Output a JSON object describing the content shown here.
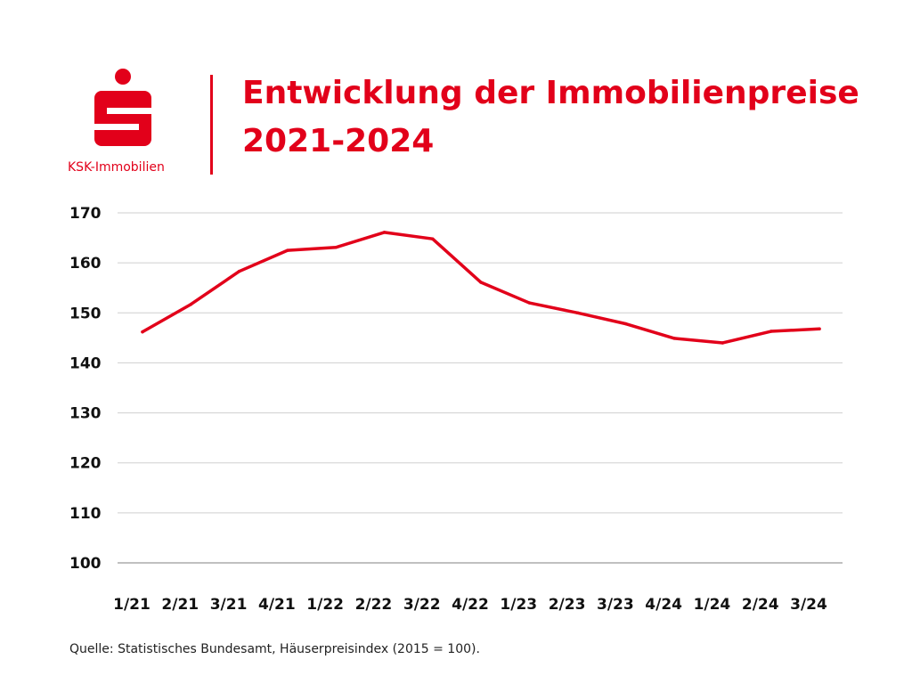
{
  "brand": {
    "name": "KSK-Immobilien",
    "color": "#e2001a"
  },
  "chart_data": {
    "type": "line",
    "title": "Entwicklung der Immobilienpreise",
    "subtitle": "2021-2024",
    "xlabel": "",
    "ylabel": "",
    "categories": [
      "1/21",
      "2/21",
      "3/21",
      "4/21",
      "1/22",
      "2/22",
      "3/22",
      "4/22",
      "1/23",
      "2/23",
      "3/23",
      "4/24",
      "1/24",
      "2/24",
      "3/24"
    ],
    "series": [
      {
        "name": "Häuserpreisindex",
        "color": "#e2001a",
        "values": [
          146.2,
          151.7,
          158.3,
          162.5,
          163.1,
          166.1,
          164.8,
          156.1,
          152.0,
          150.0,
          147.8,
          144.9,
          144.0,
          146.3,
          146.8
        ]
      }
    ],
    "ylim": [
      100,
      170
    ],
    "yticks": [
      100,
      110,
      120,
      130,
      140,
      150,
      160,
      170
    ],
    "grid": true,
    "legend": "none"
  },
  "source": "Quelle: Statistisches Bundesamt, Häuserpreisindex (2015 = 100)."
}
